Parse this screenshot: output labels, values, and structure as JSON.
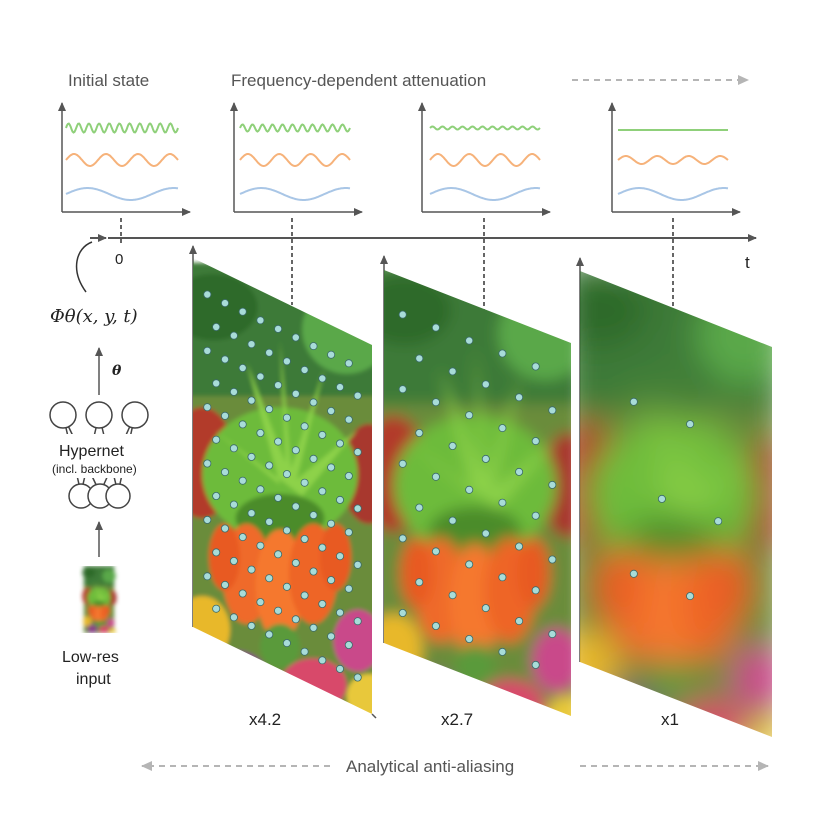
{
  "header": {
    "initial_state": "Initial state",
    "attenuation": "Frequency-dependent attenuation"
  },
  "timeline": {
    "origin_label": "0",
    "axis_label": "t"
  },
  "model": {
    "function_label": "Φθ(x, y, t)",
    "theta_label": "θ",
    "hypernet_label": "Hypernet",
    "hypernet_sub": "(incl. backbone)",
    "input_label_line1": "Low-res",
    "input_label_line2": "input"
  },
  "panels": [
    {
      "scale_label": "x4.2"
    },
    {
      "scale_label": "x2.7"
    },
    {
      "scale_label": "x1"
    }
  ],
  "footer": {
    "anti_aliasing": "Analytical anti-aliasing"
  },
  "colors": {
    "green_wave": "#8fd07a",
    "orange_wave": "#f6b27a",
    "blue_wave": "#a9c6e6",
    "axis": "#555555",
    "dashed_arrow": "#b5b5b5",
    "sample_point": "#a8dcd8"
  }
}
